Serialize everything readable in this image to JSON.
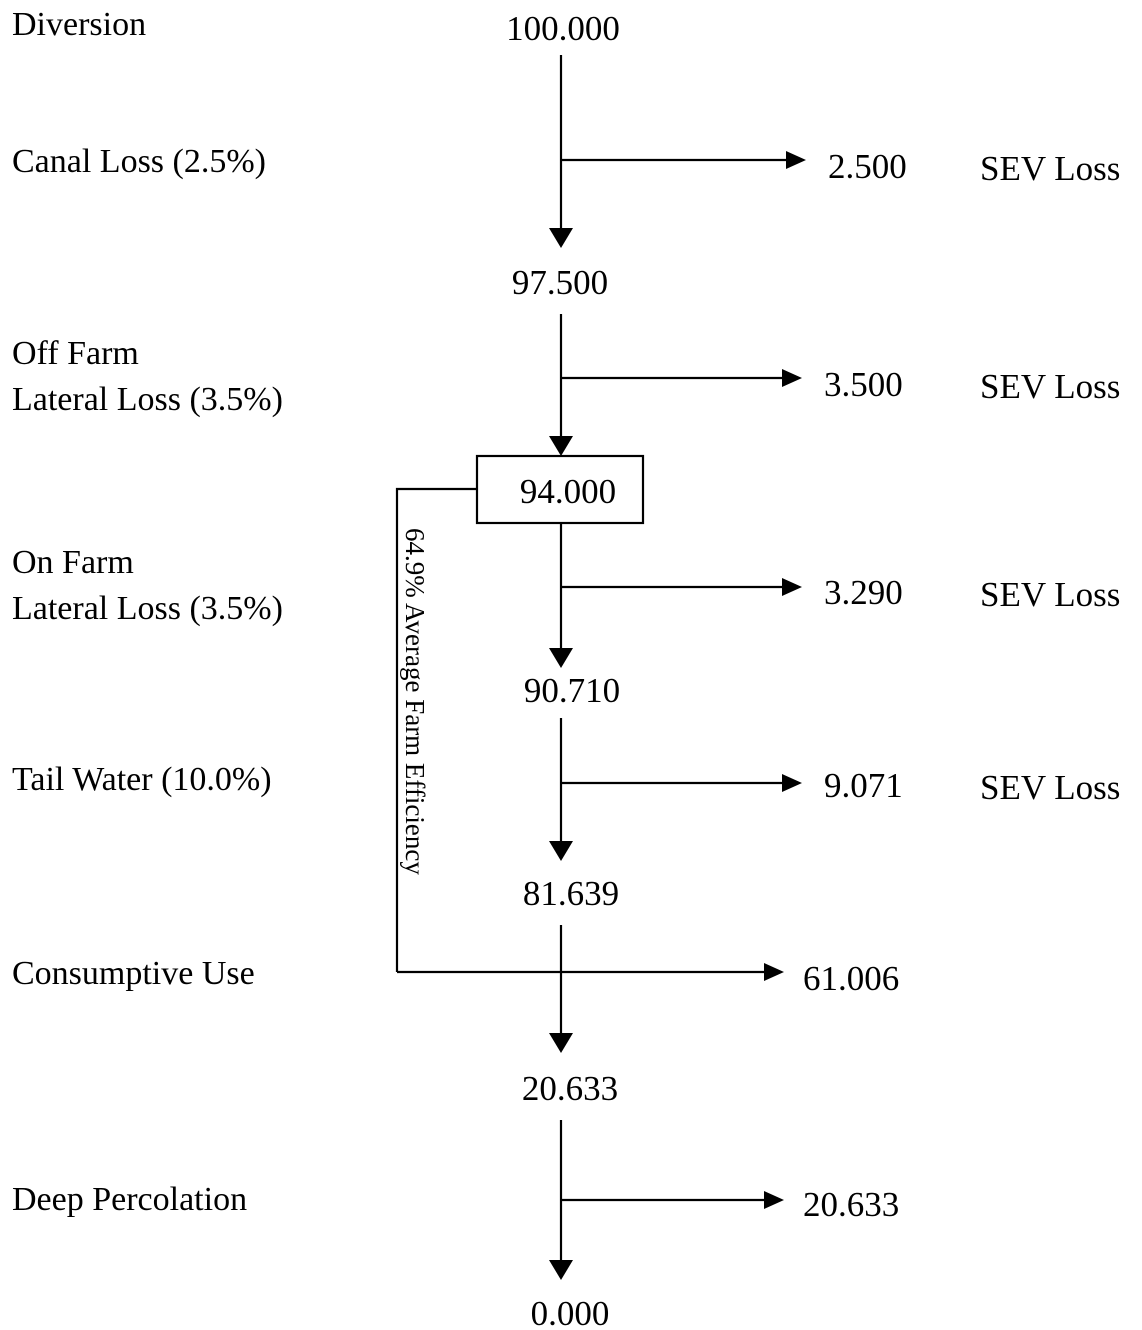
{
  "stages": [
    {
      "label": [
        "Diversion"
      ],
      "value": "100.000"
    },
    {
      "label": [
        "Canal Loss (2.5%)"
      ],
      "value": "97.500",
      "loss": "2.500",
      "loss_type": "SEV Loss"
    },
    {
      "label": [
        "Off Farm",
        "Lateral Loss (3.5%)"
      ],
      "value": "94.000",
      "loss": "3.500",
      "loss_type": "SEV Loss"
    },
    {
      "label": [
        "On Farm",
        "Lateral Loss (3.5%)"
      ],
      "value": "90.710",
      "loss": "3.290",
      "loss_type": "SEV Loss"
    },
    {
      "label": [
        "Tail Water (10.0%)"
      ],
      "value": "81.639",
      "loss": "9.071",
      "loss_type": "SEV Loss"
    },
    {
      "label": [
        "Consumptive Use"
      ],
      "value": "20.633",
      "loss": "61.006"
    },
    {
      "label": [
        "Deep Percolation"
      ],
      "value": "0.000",
      "loss": "20.633"
    }
  ],
  "efficiency_note": "64.9% Average Farm Efficiency"
}
